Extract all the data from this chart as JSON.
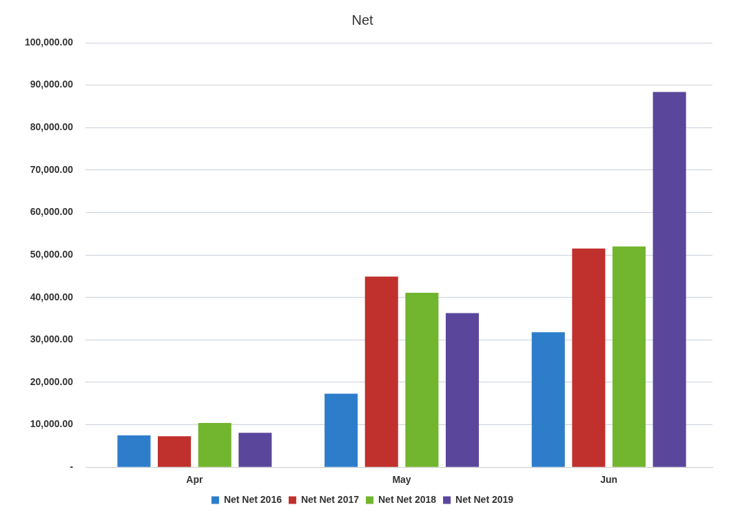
{
  "chart_data": {
    "type": "bar",
    "title": "Net",
    "categories": [
      "Apr",
      "May",
      "Jun"
    ],
    "series": [
      {
        "name": "Net Net 2016",
        "color": "#2e7dcb",
        "values": [
          7500,
          17300,
          31800
        ]
      },
      {
        "name": "Net Net 2017",
        "color": "#c0302c",
        "values": [
          7300,
          44900,
          51500
        ]
      },
      {
        "name": "Net Net 2018",
        "color": "#72b52e",
        "values": [
          10400,
          41100,
          52000
        ]
      },
      {
        "name": "Net Net 2019",
        "color": "#5a479c",
        "values": [
          8100,
          36300,
          88400
        ]
      }
    ],
    "ylim": [
      0,
      100000
    ],
    "yticks": [
      {
        "value": 0,
        "label": "-"
      },
      {
        "value": 10000,
        "label": "10,000.00"
      },
      {
        "value": 20000,
        "label": "20,000.00"
      },
      {
        "value": 30000,
        "label": "30,000.00"
      },
      {
        "value": 40000,
        "label": "40,000.00"
      },
      {
        "value": 50000,
        "label": "50,000.00"
      },
      {
        "value": 60000,
        "label": "60,000.00"
      },
      {
        "value": 70000,
        "label": "70,000.00"
      },
      {
        "value": 80000,
        "label": "80,000.00"
      },
      {
        "value": 90000,
        "label": "90,000.00"
      },
      {
        "value": 100000,
        "label": "100,000.00"
      }
    ],
    "grid": "y",
    "legend": "bottom"
  }
}
